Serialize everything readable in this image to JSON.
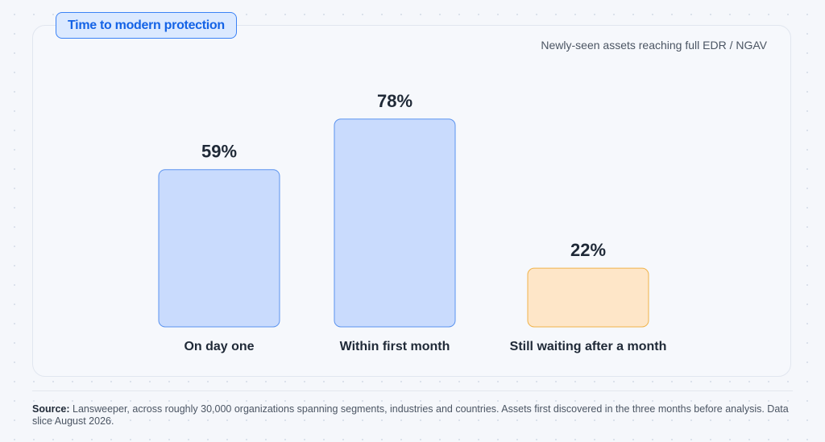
{
  "header": {
    "title": "Time to modern protection",
    "subtitle": "Newly-seen assets reaching full EDR / NGAV"
  },
  "chart_data": {
    "type": "bar",
    "categories": [
      "On day one",
      "Within first month",
      "Still waiting after a month"
    ],
    "values": [
      59,
      78,
      22
    ],
    "value_labels": [
      "59%",
      "78%",
      "22%"
    ],
    "bar_colors": [
      {
        "fill": "#c9dbfd",
        "stroke": "#5b93ef"
      },
      {
        "fill": "#c9dbfd",
        "stroke": "#5b93ef"
      },
      {
        "fill": "#fee6c8",
        "stroke": "#f0b34a"
      }
    ],
    "ylim": [
      0,
      100
    ],
    "grid": false,
    "legend": "none"
  },
  "footer": {
    "source_label": "Source:",
    "source_text": " Lansweeper, across roughly 30,000 organizations spanning segments, industries and countries. Assets first discovered in the three months before analysis. Data slice August 2026."
  },
  "colors": {
    "accent": "#1463e6",
    "text": "#1f2937",
    "muted": "#4b5563"
  }
}
